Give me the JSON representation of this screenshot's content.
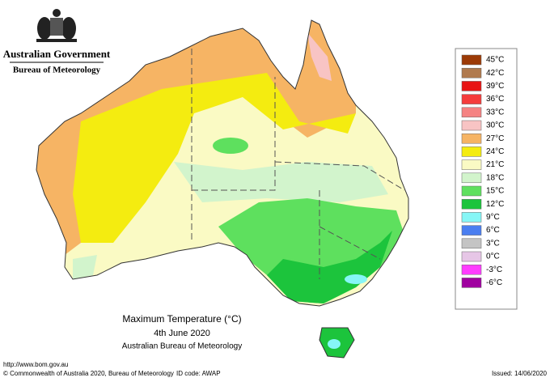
{
  "header": {
    "government": "Australian Government",
    "bureau": "Bureau of Meteorology"
  },
  "legend": {
    "items": [
      {
        "label": "45°C",
        "color": "#9c3a06"
      },
      {
        "label": "42°C",
        "color": "#b07a4e"
      },
      {
        "label": "39°C",
        "color": "#e81414"
      },
      {
        "label": "36°C",
        "color": "#f53c3c"
      },
      {
        "label": "33°C",
        "color": "#f58282"
      },
      {
        "label": "30°C",
        "color": "#f8c4c4"
      },
      {
        "label": "27°C",
        "color": "#f6b464"
      },
      {
        "label": "24°C",
        "color": "#f4ec10"
      },
      {
        "label": "21°C",
        "color": "#fafac4"
      },
      {
        "label": "18°C",
        "color": "#d2f4cc"
      },
      {
        "label": "15°C",
        "color": "#5ee05e"
      },
      {
        "label": "12°C",
        "color": "#1cc43c"
      },
      {
        "label": "9°C",
        "color": "#86f6f6"
      },
      {
        "label": "6°C",
        "color": "#4a7ef0"
      },
      {
        "label": "3°C",
        "color": "#c4c4c4"
      },
      {
        "label": "0°C",
        "color": "#e6c6e6"
      },
      {
        "label": "-3°C",
        "color": "#ff3cff"
      },
      {
        "label": "-6°C",
        "color": "#a000a0"
      }
    ]
  },
  "caption": {
    "title": "Maximum Temperature (°C)",
    "date": "4th June 2020",
    "source": "Australian Bureau of Meteorology"
  },
  "footer": {
    "url": "http://www.bom.gov.au",
    "copyright": "© Commonwealth of Australia 2020, Bureau of Meteorology",
    "id_code": "ID code: AWAP",
    "issued": "Issued: 14/06/2020"
  }
}
